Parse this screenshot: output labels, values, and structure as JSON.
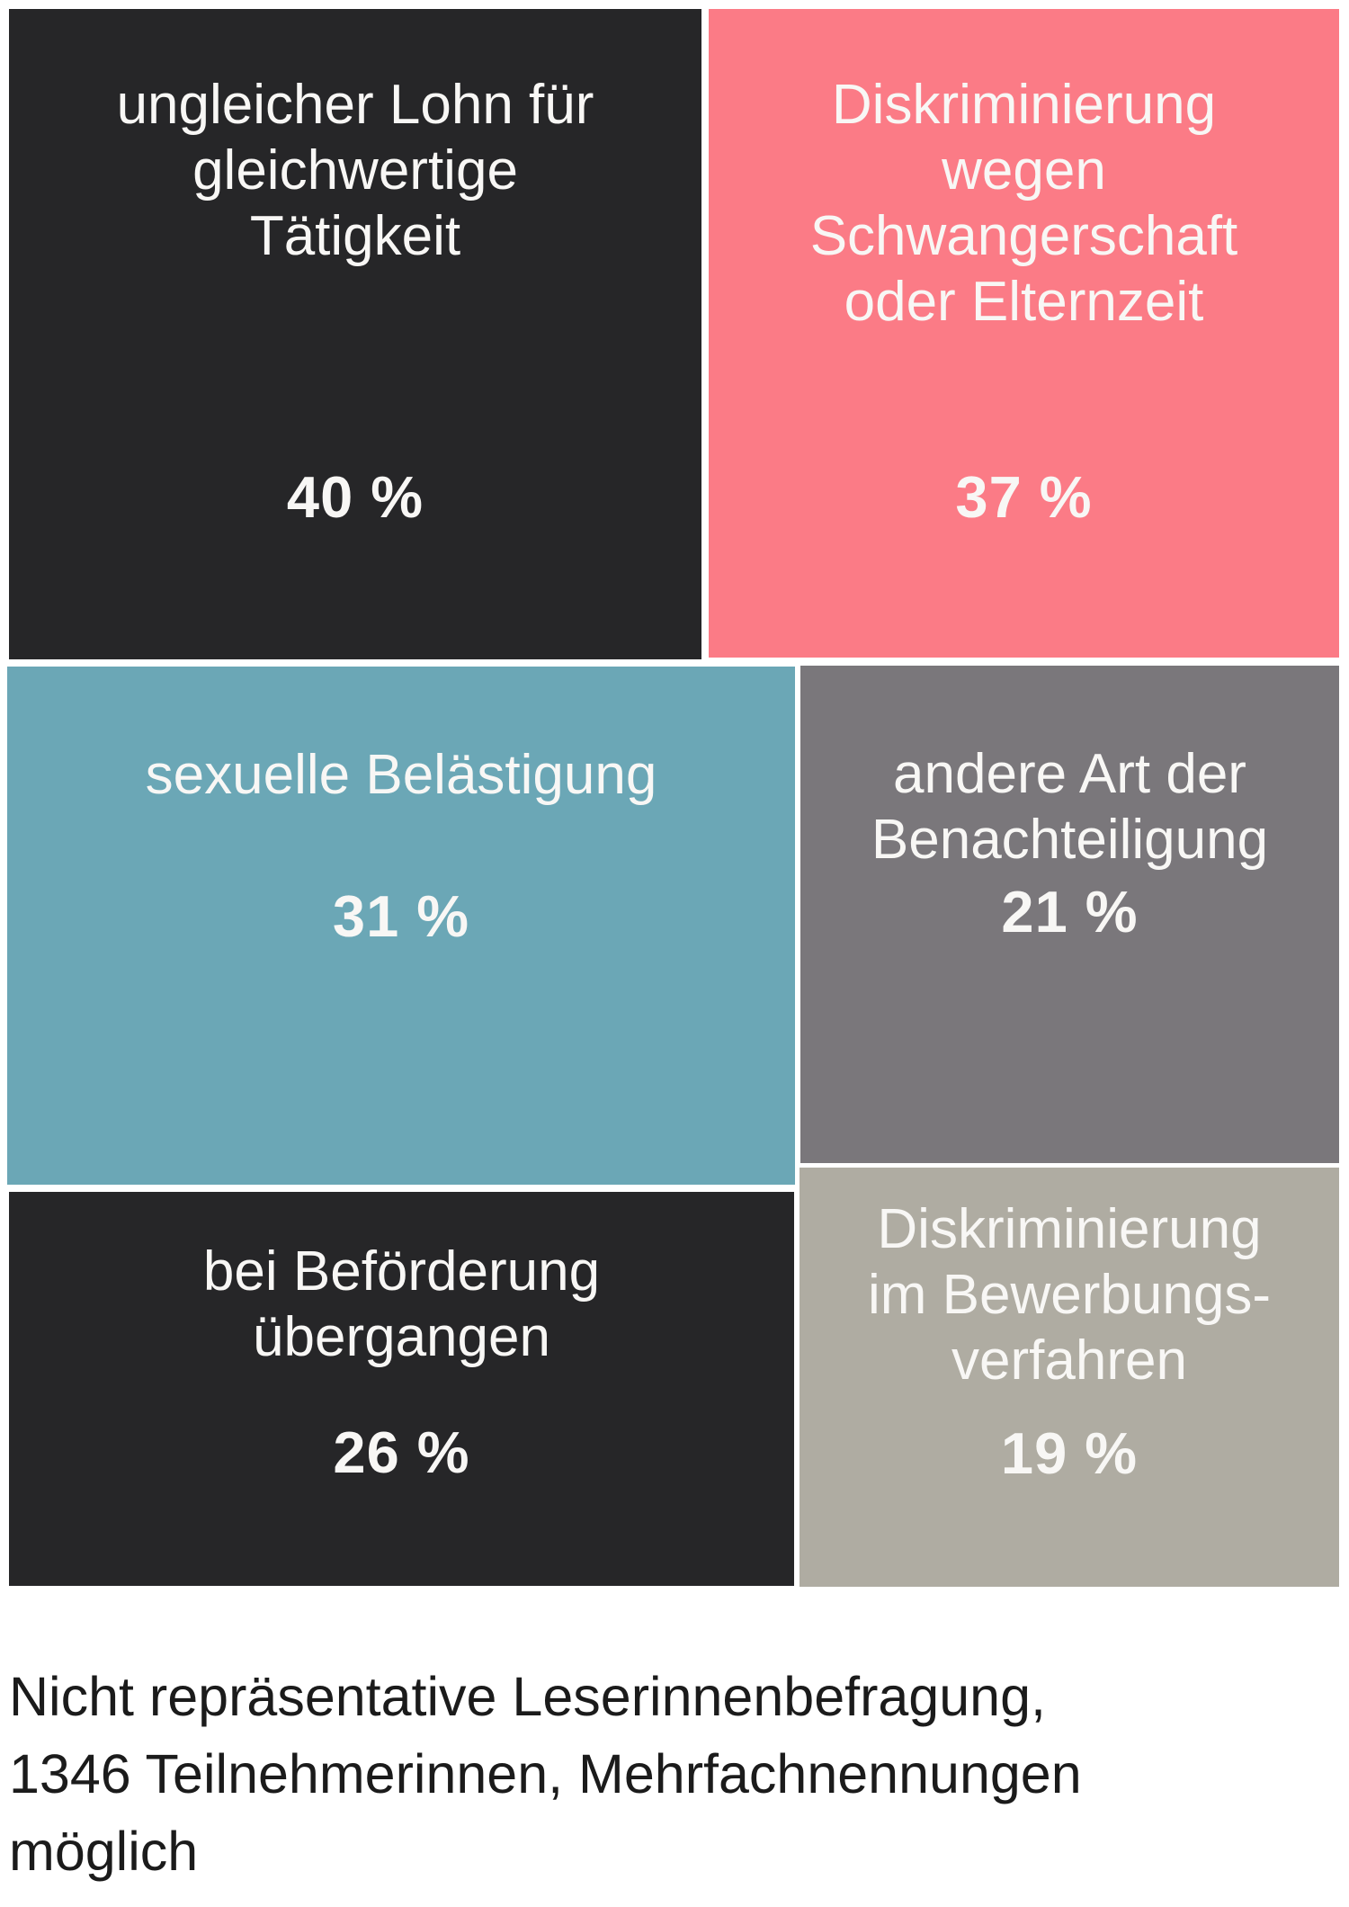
{
  "chart_data": {
    "type": "treemap",
    "title": "",
    "unit": "%",
    "legend_position": "none",
    "text_color_on_tiles": "#f8f7f5",
    "background_color": "#ffffff",
    "footnote": "Nicht repräsentative Leserinnenbefragung, 1346 Teilnehmerinnen, Mehrfachnennungen möglich",
    "items": [
      {
        "label": "ungleicher Lohn für gleichwertige Tätigkeit",
        "value": 40,
        "value_label": "40 %",
        "color": "#262628"
      },
      {
        "label": "Diskriminierung wegen Schwangerschaft oder Elternzeit",
        "value": 37,
        "value_label": "37 %",
        "color": "#fb7b86"
      },
      {
        "label": "sexuelle Belästigung",
        "value": 31,
        "value_label": "31 %",
        "color": "#6ba7b6"
      },
      {
        "label": "andere Art der Benachteiligung",
        "value": 21,
        "value_label": "21 %",
        "color": "#7a777b"
      },
      {
        "label": "bei Beförderung übergangen",
        "value": 26,
        "value_label": "26 %",
        "color": "#262628"
      },
      {
        "label": "Diskriminierung im Bewerbungsverfahren",
        "value": 19,
        "value_label": "19 %",
        "color": "#afaca2"
      }
    ]
  },
  "tiles": [
    {
      "lines": [
        "ungleicher Lohn für",
        "gleichwertige",
        "Tätigkeit"
      ],
      "pct": "40 %",
      "color": "#262628"
    },
    {
      "lines": [
        "Diskriminierung",
        "wegen",
        "Schwangerschaft",
        "oder Elternzeit"
      ],
      "pct": "37 %",
      "color": "#fb7b86"
    },
    {
      "lines": [
        "sexuelle Belästigung"
      ],
      "pct": "31 %",
      "color": "#6ba7b6"
    },
    {
      "lines": [
        "andere Art der",
        "Benachteiligung"
      ],
      "pct": "21 %",
      "color": "#7a777b"
    },
    {
      "lines": [
        "bei Beförderung",
        "übergangen"
      ],
      "pct": "26 %",
      "color": "#262628"
    },
    {
      "lines": [
        "Diskriminierung",
        "im Bewerbungs-",
        "verfahren"
      ],
      "pct": "19 %",
      "color": "#afaca2"
    }
  ],
  "caption": {
    "lines": [
      "Nicht repräsentative Leserinnenbefragung,",
      "1346 Teilnehmerinnen, Mehrfachnennungen",
      "möglich"
    ]
  }
}
